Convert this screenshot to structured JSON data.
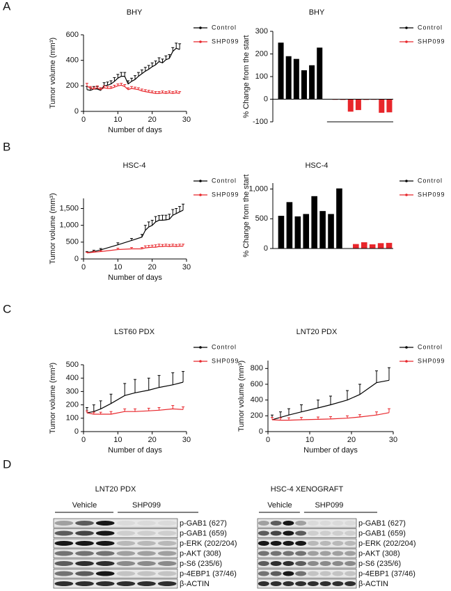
{
  "panels": [
    "A",
    "B",
    "C",
    "D"
  ],
  "chart_data": [
    {
      "type": "line",
      "title": "BHY",
      "xlabel": "Number of days",
      "ylabel": "Tumor volume (mm³)",
      "xlim": [
        0,
        30
      ],
      "xticks": [
        0,
        10,
        20,
        30
      ],
      "ylim": [
        0,
        600
      ],
      "yticks": [
        0,
        200,
        400,
        600
      ],
      "legend": "right",
      "x": [
        1,
        2,
        3,
        4,
        5,
        6,
        7,
        8,
        9,
        10,
        11,
        12,
        13,
        14,
        15,
        16,
        17,
        18,
        19,
        20,
        21,
        22,
        23,
        24,
        25,
        26,
        27,
        28
      ],
      "series": [
        {
          "name": "Control",
          "color": "#000000",
          "values": [
            170,
            165,
            175,
            175,
            165,
            200,
            205,
            215,
            235,
            260,
            275,
            275,
            215,
            235,
            250,
            275,
            295,
            315,
            330,
            350,
            365,
            390,
            380,
            405,
            415,
            470,
            495,
            485
          ],
          "errors": [
            25,
            20,
            20,
            20,
            20,
            25,
            25,
            25,
            30,
            30,
            30,
            30,
            25,
            25,
            30,
            30,
            30,
            30,
            30,
            30,
            30,
            30,
            30,
            30,
            30,
            30,
            40,
            45
          ]
        },
        {
          "name": "SHP099",
          "color": "#e8262b",
          "values": [
            200,
            180,
            175,
            185,
            170,
            185,
            180,
            180,
            190,
            200,
            205,
            195,
            170,
            180,
            175,
            170,
            160,
            155,
            150,
            145,
            140,
            140,
            145,
            140,
            145,
            140,
            145,
            140
          ],
          "errors": [
            20,
            15,
            15,
            15,
            15,
            15,
            15,
            15,
            15,
            15,
            15,
            15,
            15,
            15,
            15,
            15,
            15,
            15,
            15,
            15,
            15,
            15,
            15,
            15,
            15,
            15,
            15,
            15
          ]
        }
      ]
    },
    {
      "type": "bar",
      "title": "BHY",
      "ylabel": "% Change from the start",
      "ylim": [
        -100,
        300
      ],
      "yticks": [
        -100,
        0,
        100,
        200,
        300
      ],
      "legend": "right",
      "categories": [
        null,
        null,
        null,
        null,
        null,
        null,
        null,
        null,
        null,
        null,
        null,
        null,
        null,
        null,
        null
      ],
      "series": [
        {
          "name": "Control",
          "color": "#000000",
          "values": [
            250,
            190,
            178,
            128,
            150,
            228,
            null,
            null,
            null,
            null,
            null,
            null,
            null,
            null,
            null
          ]
        },
        {
          "name": "SHP099",
          "color": "#e8262b",
          "values": [
            null,
            null,
            null,
            null,
            null,
            null,
            null,
            -2,
            -3,
            -55,
            -48,
            -3,
            -2,
            -60,
            -58
          ]
        }
      ]
    },
    {
      "type": "line",
      "title": "HSC-4",
      "xlabel": "Number of days",
      "ylabel": "Tumor volume (mm³)",
      "xlim": [
        0,
        30
      ],
      "xticks": [
        0,
        10,
        20,
        30
      ],
      "ylim": [
        0,
        1800
      ],
      "yticks": [
        0,
        500,
        {
          "value": 1000,
          "label": "1,000"
        },
        {
          "value": 1500,
          "label": "1,500"
        }
      ],
      "legend": "right",
      "x": [
        1,
        3,
        5,
        10,
        14,
        17,
        18,
        19,
        20,
        21,
        22,
        23,
        24,
        25,
        26,
        27,
        28,
        29
      ],
      "series": [
        {
          "name": "Control",
          "color": "#000000",
          "values": [
            190,
            220,
            270,
            420,
            550,
            650,
            850,
            950,
            1000,
            1100,
            1150,
            1150,
            1160,
            1180,
            1300,
            1350,
            1400,
            1450
          ],
          "errors": [
            30,
            40,
            40,
            60,
            60,
            80,
            150,
            150,
            150,
            160,
            140,
            150,
            140,
            150,
            170,
            150,
            160,
            180
          ]
        },
        {
          "name": "SHP099",
          "color": "#e8262b",
          "values": [
            180,
            200,
            220,
            280,
            300,
            300,
            330,
            340,
            350,
            350,
            370,
            370,
            380,
            370,
            380,
            370,
            380,
            380
          ],
          "errors": [
            20,
            30,
            30,
            40,
            40,
            40,
            60,
            60,
            60,
            70,
            70,
            60,
            60,
            60,
            60,
            60,
            60,
            60
          ]
        }
      ]
    },
    {
      "type": "bar",
      "title": "HSC-4",
      "ylabel": "% Change from the start",
      "ylim": [
        0,
        1100
      ],
      "yticks": [
        0,
        500,
        {
          "value": 1000,
          "label": "1,000"
        }
      ],
      "legend": "right",
      "categories": [
        null,
        null,
        null,
        null,
        null,
        null,
        null,
        null,
        null,
        null,
        null,
        null,
        null,
        null
      ],
      "series": [
        {
          "name": "Control",
          "color": "#000000",
          "values": [
            550,
            780,
            540,
            580,
            880,
            630,
            580,
            1010,
            null,
            null,
            null,
            null,
            null,
            null
          ]
        },
        {
          "name": "SHP099",
          "color": "#e8262b",
          "values": [
            null,
            null,
            null,
            null,
            null,
            null,
            null,
            null,
            null,
            75,
            105,
            70,
            90,
            95
          ]
        }
      ]
    },
    {
      "type": "line",
      "title": "LST60  PDX",
      "xlabel": "Number of days",
      "ylabel": "Tumor volume (mm³)",
      "xlim": [
        0,
        30
      ],
      "xticks": [
        0,
        10,
        20,
        30
      ],
      "ylim": [
        0,
        500
      ],
      "yticks": [
        0,
        100,
        200,
        300,
        400,
        500
      ],
      "legend": "right",
      "x": [
        1,
        3,
        5,
        8,
        12,
        15,
        19,
        22,
        26,
        29
      ],
      "series": [
        {
          "name": "Control",
          "color": "#000000",
          "values": [
            140,
            150,
            170,
            210,
            270,
            290,
            310,
            330,
            350,
            370
          ],
          "errors": [
            40,
            50,
            60,
            70,
            90,
            100,
            90,
            90,
            90,
            80
          ]
        },
        {
          "name": "SHP099",
          "color": "#e8262b",
          "values": [
            140,
            130,
            130,
            130,
            150,
            150,
            155,
            160,
            170,
            165
          ],
          "errors": [
            15,
            15,
            15,
            20,
            20,
            20,
            20,
            20,
            25,
            20
          ]
        }
      ]
    },
    {
      "type": "line",
      "title": "LNT20  PDX",
      "xlabel": "Number of days",
      "ylabel": "Tumor volume (mm³)",
      "xlim": [
        0,
        30
      ],
      "xticks": [
        0,
        10,
        20,
        30
      ],
      "ylim": [
        0,
        900
      ],
      "yticks": [
        0,
        200,
        400,
        600,
        800
      ],
      "legend": "right",
      "x": [
        1,
        3,
        5,
        8,
        12,
        15,
        19,
        22,
        26,
        29
      ],
      "series": [
        {
          "name": "Control",
          "color": "#000000",
          "values": [
            150,
            180,
            210,
            250,
            300,
            340,
            400,
            470,
            620,
            650
          ],
          "errors": [
            60,
            70,
            80,
            90,
            100,
            110,
            120,
            130,
            150,
            160
          ]
        },
        {
          "name": "SHP099",
          "color": "#e8262b",
          "values": [
            150,
            145,
            145,
            150,
            155,
            160,
            170,
            185,
            210,
            240
          ],
          "errors": [
            30,
            30,
            30,
            30,
            30,
            30,
            30,
            30,
            40,
            50
          ]
        }
      ]
    }
  ],
  "blots": [
    {
      "title": "LNT20 PDX",
      "groups": [
        "Vehicle",
        "SHP099"
      ],
      "rows": [
        "p-GAB1 (627)",
        "p-GAB1 (659)",
        "p-ERK (202/204)",
        "p-AKT (308)",
        "p-S6 (235/6)",
        "p-4EBP1 (37/46)",
        "β-ACTIN"
      ]
    },
    {
      "title": "HSC-4 XENOGRAFT",
      "groups": [
        "Vehicle",
        "SHP099"
      ],
      "rows": [
        "p-GAB1 (627)",
        "p-GAB1 (659)",
        "p-ERK (202/204)",
        "p-AKT (308)",
        "p-S6 (235/6)",
        "p-4EBP1 (37/46)",
        "β-ACTIN"
      ]
    }
  ]
}
